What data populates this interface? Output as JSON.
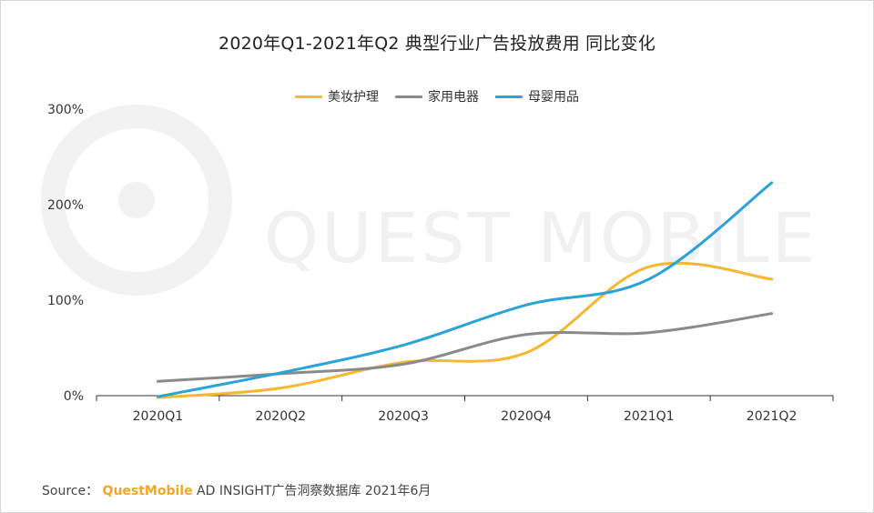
{
  "page": {
    "title": "2020年Q1-2021年Q2 典型行业广告投放费用 同比变化",
    "watermark": "QUEST MOBILE"
  },
  "source": {
    "prefix": "Source：",
    "brand": "QuestMobile",
    "suffix": " AD INSIGHT广告洞察数据库 2021年6月"
  },
  "colors": {
    "beauty": "#f5b82e",
    "appliance": "#8a8a8a",
    "baby": "#2aa3d8"
  },
  "chart_data": {
    "type": "line",
    "title": "2020年Q1-2021年Q2 典型行业广告投放费用 同比变化",
    "xlabel": "",
    "ylabel": "",
    "categories": [
      "2020Q1",
      "2020Q2",
      "2020Q3",
      "2020Q4",
      "2021Q1",
      "2021Q2"
    ],
    "yticks": [
      "0%",
      "100%",
      "200%",
      "300%"
    ],
    "ylim": [
      0,
      300
    ],
    "legend_position": "top-center",
    "grid": false,
    "smooth": true,
    "series": [
      {
        "name": "美妆护理",
        "color": "#f5b82e",
        "values": [
          -2,
          8,
          35,
          45,
          135,
          122
        ]
      },
      {
        "name": "家用电器",
        "color": "#8a8a8a",
        "values": [
          15,
          23,
          33,
          64,
          66,
          86
        ]
      },
      {
        "name": "母婴用品",
        "color": "#2aa3d8",
        "values": [
          -1,
          24,
          53,
          95,
          122,
          223
        ]
      }
    ]
  }
}
